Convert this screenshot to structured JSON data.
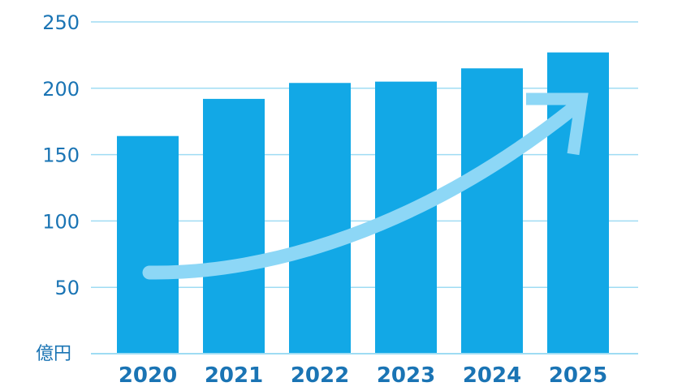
{
  "chart_data": {
    "type": "bar",
    "categories": [
      "2020",
      "2021",
      "2022",
      "2023",
      "2024",
      "2025"
    ],
    "values": [
      164,
      192,
      204,
      205,
      215,
      227
    ],
    "ylim": [
      0,
      250
    ],
    "yticks": [
      50,
      100,
      150,
      200,
      250
    ],
    "ylabel": "億円",
    "grid": true,
    "annotations": [
      "upward-trend-arrow"
    ],
    "colors": {
      "bar": "#12a8e6",
      "grid": "#9fdcf3",
      "arrow": "#8dd7f6",
      "text": "#1a74b4"
    }
  }
}
